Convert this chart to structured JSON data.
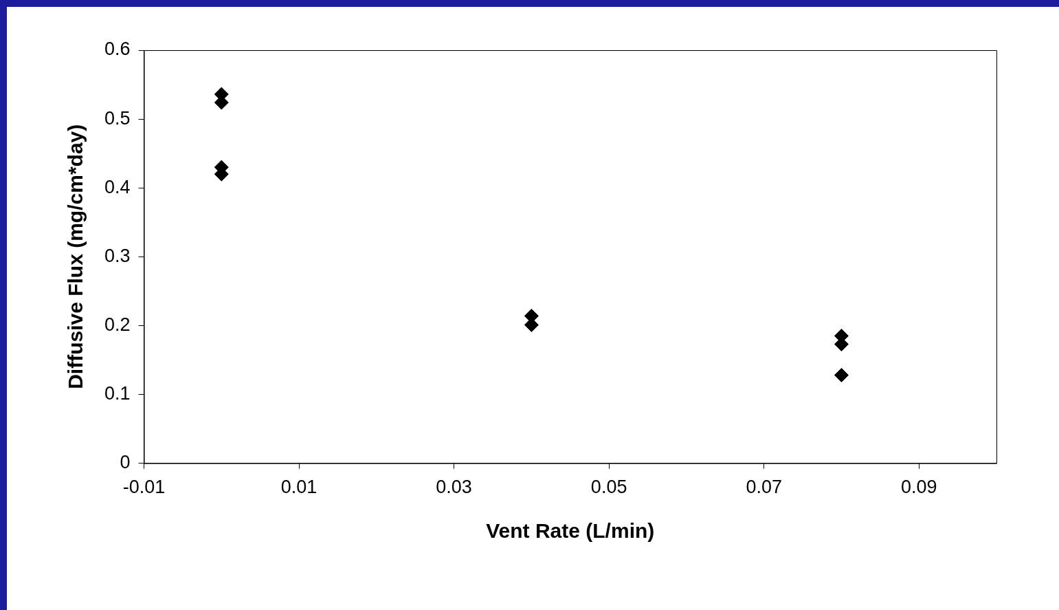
{
  "chart_data": {
    "type": "scatter",
    "xlabel": "Vent Rate (L/min)",
    "ylabel": "Diffusive Flux (mg/cm*day)",
    "series": [
      {
        "color": "#000000",
        "x": [
          0,
          0,
          0,
          0,
          0.04,
          0.04,
          0.08,
          0.08,
          0.08
        ],
        "values": [
          0.536,
          0.524,
          0.43,
          0.42,
          0.214,
          0.201,
          0.185,
          0.173,
          0.128
        ]
      }
    ],
    "xlim": [
      -0.01,
      0.1
    ],
    "xticks": [
      -0.01,
      0.01,
      0.03,
      0.05,
      0.07,
      0.09
    ],
    "ylim": [
      0,
      0.6
    ],
    "yticks": [
      0,
      0.1,
      0.2,
      0.3,
      0.4,
      0.5,
      0.6
    ],
    "grid": false,
    "legend": false,
    "marker": "diamond"
  }
}
